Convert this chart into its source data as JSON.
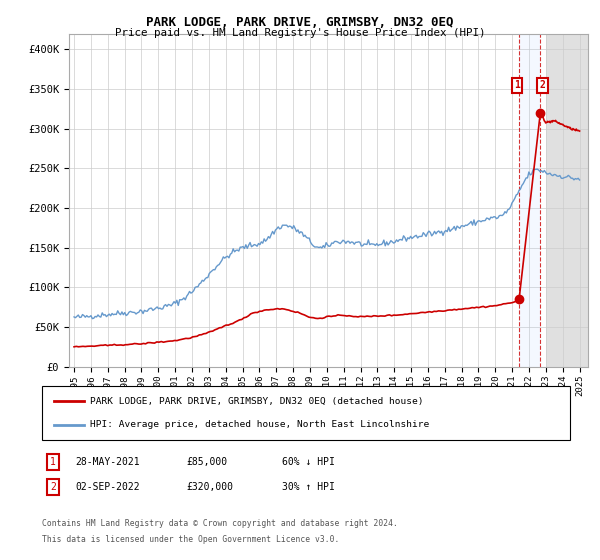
{
  "title": "PARK LODGE, PARK DRIVE, GRIMSBY, DN32 0EQ",
  "subtitle": "Price paid vs. HM Land Registry's House Price Index (HPI)",
  "ylim": [
    0,
    420000
  ],
  "xlim_start": 1994.7,
  "xlim_end": 2025.5,
  "background_color": "#ffffff",
  "plot_bg_color": "#ffffff",
  "grid_color": "#cccccc",
  "hpi_color": "#6699cc",
  "price_color": "#cc0000",
  "transaction1_date": 2021.41,
  "transaction1_price": 85000,
  "transaction2_date": 2022.67,
  "transaction2_price": 320000,
  "legend_entry1": "PARK LODGE, PARK DRIVE, GRIMSBY, DN32 0EQ (detached house)",
  "legend_entry2": "HPI: Average price, detached house, North East Lincolnshire",
  "table_row1": [
    "1",
    "28-MAY-2021",
    "£85,000",
    "60% ↓ HPI"
  ],
  "table_row2": [
    "2",
    "02-SEP-2022",
    "£320,000",
    "30% ↑ HPI"
  ],
  "footer1": "Contains HM Land Registry data © Crown copyright and database right 2024.",
  "footer2": "This data is licensed under the Open Government Licence v3.0.",
  "yticks": [
    0,
    50000,
    100000,
    150000,
    200000,
    250000,
    300000,
    350000,
    400000
  ],
  "ytick_labels": [
    "£0",
    "£50K",
    "£100K",
    "£150K",
    "£200K",
    "£250K",
    "£300K",
    "£350K",
    "£400K"
  ],
  "xticks": [
    1995,
    1996,
    1997,
    1998,
    1999,
    2000,
    2001,
    2002,
    2003,
    2004,
    2005,
    2006,
    2007,
    2008,
    2009,
    2010,
    2011,
    2012,
    2013,
    2014,
    2015,
    2016,
    2017,
    2018,
    2019,
    2020,
    2021,
    2022,
    2023,
    2024,
    2025
  ],
  "hatched_region_start": 2023.0,
  "hatched_region_end": 2025.5,
  "hpi_anchors_t": [
    1995.0,
    1996.0,
    1997.0,
    1998.0,
    1999.0,
    2000.0,
    2001.0,
    2002.0,
    2002.5,
    2003.5,
    2004.5,
    2005.5,
    2006.5,
    2007.0,
    2007.5,
    2008.0,
    2008.5,
    2009.0,
    2009.5,
    2010.0,
    2010.5,
    2011.0,
    2011.5,
    2012.0,
    2012.5,
    2013.0,
    2013.5,
    2014.0,
    2014.5,
    2015.0,
    2015.5,
    2016.0,
    2016.5,
    2017.0,
    2017.5,
    2018.0,
    2018.5,
    2019.0,
    2019.5,
    2020.0,
    2020.5,
    2021.0,
    2021.5,
    2022.0,
    2022.5,
    2023.0,
    2023.5,
    2024.0,
    2024.5,
    2025.0
  ],
  "hpi_anchors_v": [
    62000,
    64000,
    66000,
    68000,
    70000,
    74000,
    80000,
    95000,
    105000,
    128000,
    145000,
    153000,
    162000,
    173000,
    178000,
    175000,
    168000,
    158000,
    150000,
    152000,
    157000,
    158000,
    157000,
    155000,
    153000,
    154000,
    156000,
    158000,
    161000,
    163000,
    165000,
    167000,
    169000,
    172000,
    174000,
    177000,
    180000,
    183000,
    186000,
    188000,
    192000,
    205000,
    225000,
    242000,
    248000,
    245000,
    242000,
    240000,
    238000,
    237000
  ],
  "price_anchors_t": [
    1995.0,
    1996.0,
    1997.0,
    1998.0,
    1999.0,
    2000.0,
    2001.0,
    2002.0,
    2003.0,
    2004.0,
    2005.0,
    2005.5,
    2006.0,
    2006.5,
    2007.0,
    2007.5,
    2008.0,
    2008.5,
    2009.0,
    2009.5,
    2010.0,
    2011.0,
    2012.0,
    2013.0,
    2014.0,
    2015.0,
    2016.0,
    2017.0,
    2018.0,
    2019.0,
    2020.0,
    2020.5,
    2021.0,
    2021.35,
    2021.41,
    2022.5,
    2022.67,
    2022.8,
    2023.0,
    2023.5,
    2024.0,
    2024.5,
    2025.0
  ],
  "price_anchors_v": [
    25000,
    26000,
    27000,
    28000,
    29000,
    31000,
    33000,
    37000,
    43000,
    52000,
    60000,
    67000,
    70000,
    72000,
    73000,
    73000,
    70000,
    67000,
    62000,
    61000,
    63000,
    65000,
    63000,
    64000,
    65000,
    67000,
    69000,
    71000,
    73000,
    75000,
    77000,
    79000,
    81000,
    83500,
    85000,
    320000,
    320000,
    315000,
    308000,
    310000,
    305000,
    300000,
    297000
  ]
}
